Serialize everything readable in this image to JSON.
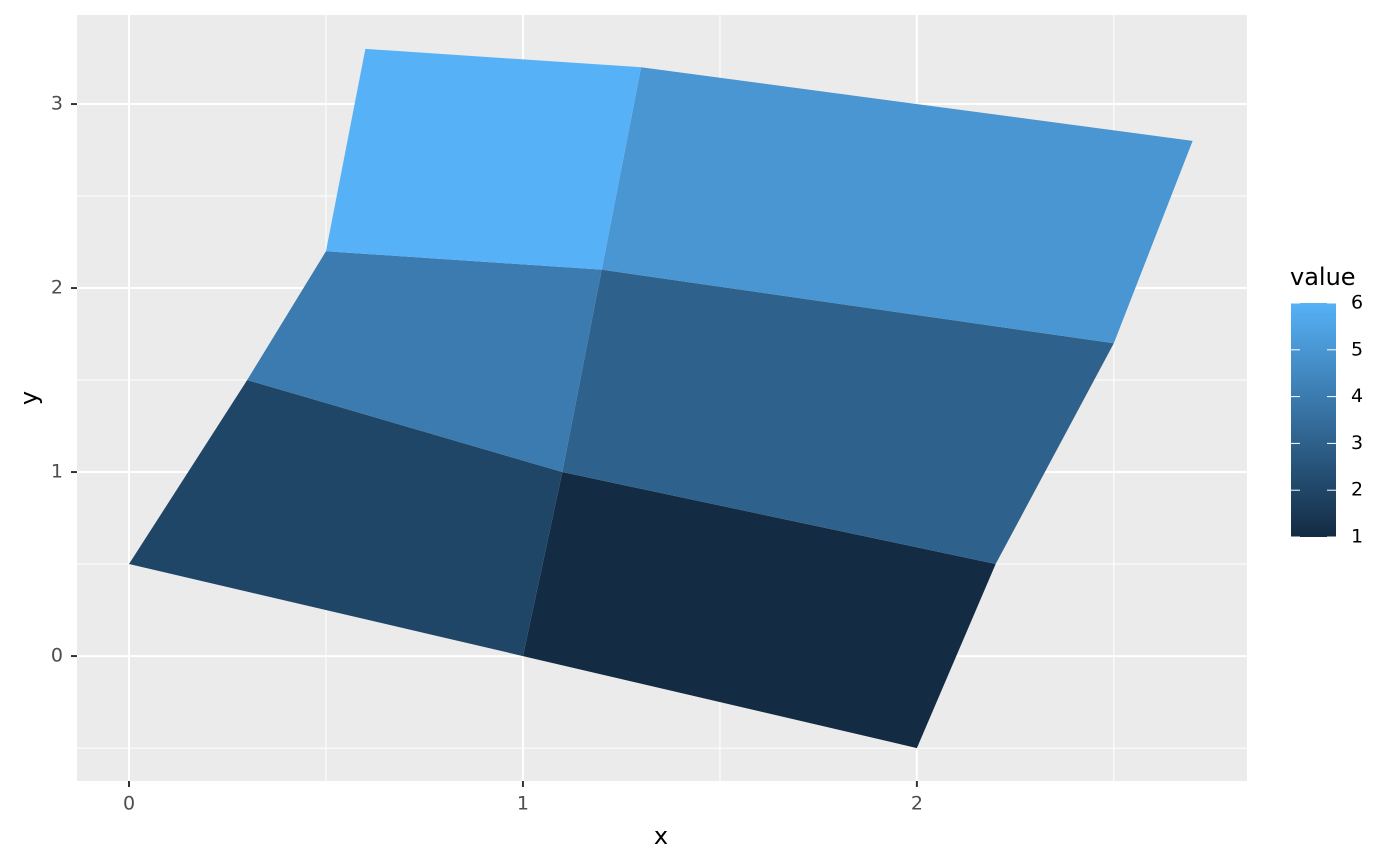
{
  "chart_data": {
    "type": "polygon",
    "x_label": "x",
    "y_label": "y",
    "xlim": [
      -0.132,
      2.838
    ],
    "ylim": [
      -0.679,
      3.484
    ],
    "xticks": [
      0,
      1,
      2
    ],
    "yticks": [
      0,
      1,
      2,
      3
    ],
    "xminor": [
      0.5,
      1.5,
      2.5
    ],
    "yminor": [
      -0.5,
      0.5,
      1.5,
      2.5
    ],
    "grid": true,
    "color_scale": {
      "title": "value",
      "low": "#132B43",
      "high": "#56B1F7",
      "limits": [
        1,
        6
      ],
      "ticks": [
        1,
        2,
        3,
        4,
        5,
        6
      ]
    },
    "polygons": [
      {
        "value": 1,
        "x": [
          2,
          1,
          1.1,
          2.2
        ],
        "y": [
          -0.5,
          0,
          1,
          0.5
        ]
      },
      {
        "value": 2,
        "x": [
          1,
          0,
          0.3,
          1.1
        ],
        "y": [
          0,
          0.5,
          1.5,
          1
        ]
      },
      {
        "value": 3,
        "x": [
          2.2,
          1.1,
          1.2,
          2.5
        ],
        "y": [
          0.5,
          1,
          2.1,
          1.7
        ]
      },
      {
        "value": 4,
        "x": [
          1.1,
          0.3,
          0.5,
          1.2
        ],
        "y": [
          1,
          1.5,
          2.2,
          2.1
        ]
      },
      {
        "value": 5,
        "x": [
          2.5,
          1.2,
          1.3,
          2.7
        ],
        "y": [
          1.7,
          2.1,
          3.2,
          2.8
        ]
      },
      {
        "value": 6,
        "x": [
          1.2,
          0.5,
          0.6,
          1.3
        ],
        "y": [
          2.1,
          2.2,
          3.3,
          3.2
        ]
      }
    ]
  }
}
